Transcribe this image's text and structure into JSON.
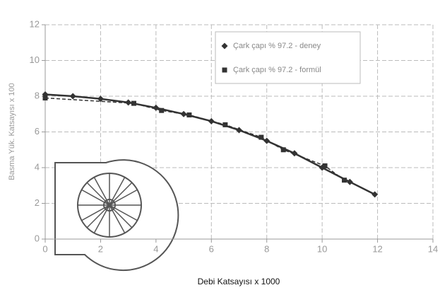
{
  "chart_data": {
    "type": "line",
    "x_label": "Debi Katsayısı x 1000",
    "y_label": "Basma Yük. Katsayısı x 100",
    "xlim": [
      0,
      14
    ],
    "xticks": [
      0,
      2,
      4,
      6,
      8,
      10,
      12,
      14
    ],
    "ylim": [
      0,
      12
    ],
    "yticks": [
      0,
      2,
      4,
      6,
      8,
      10,
      12
    ],
    "grid": true,
    "legend": "top-right",
    "series": [
      {
        "name": "Çark çapı % 97.2 - deney",
        "color": "#333333",
        "marker": "diamond",
        "x": [
          0,
          1,
          2,
          3,
          4,
          5,
          6,
          7,
          8,
          9,
          10,
          11,
          11.9
        ],
        "values": [
          8.1,
          8.0,
          7.85,
          7.65,
          7.35,
          7.0,
          6.6,
          6.1,
          5.5,
          4.8,
          4.0,
          3.2,
          2.5
        ]
      },
      {
        "name": "Çark çapı % 97.2 - formül",
        "color": "#333333",
        "marker": "square",
        "x": [
          0,
          3.2,
          4.2,
          5.2,
          6.5,
          7.8,
          8.6,
          10.1,
          10.8
        ],
        "values": [
          7.9,
          7.6,
          7.2,
          6.95,
          6.4,
          5.7,
          5.0,
          4.1,
          3.3
        ]
      }
    ]
  }
}
